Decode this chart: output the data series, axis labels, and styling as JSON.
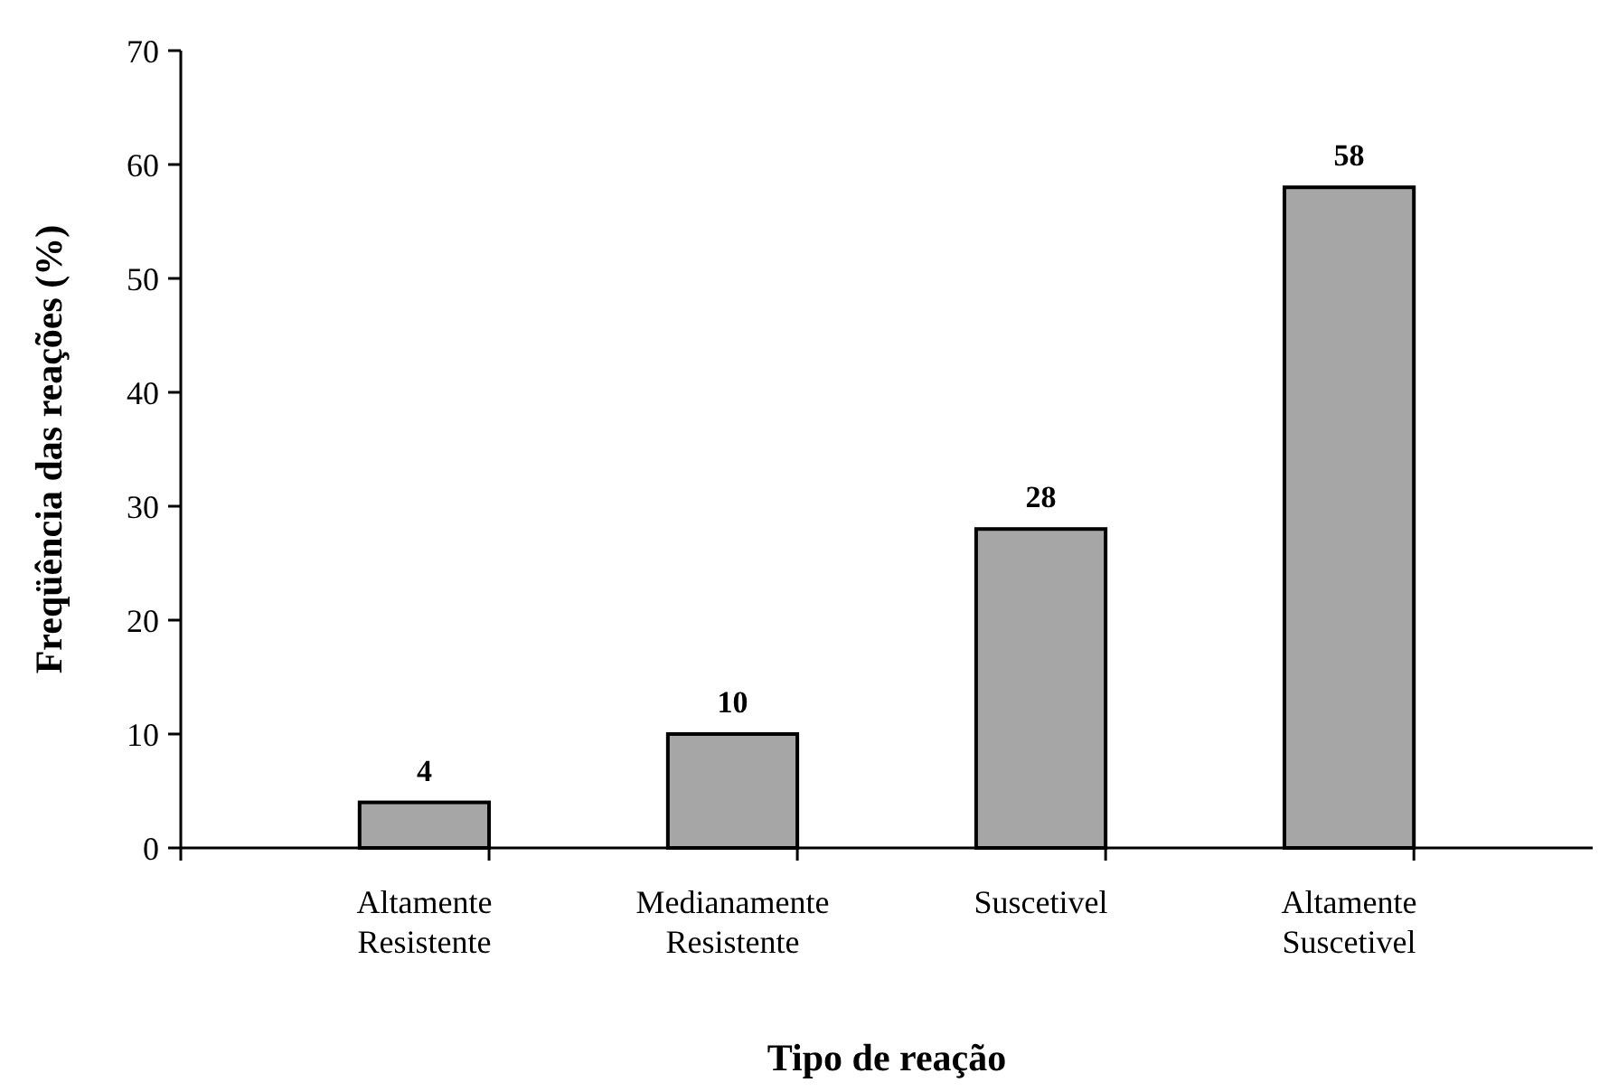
{
  "chart_data": {
    "type": "bar",
    "xlabel": "Tipo de reação",
    "ylabel": "Freqüência das reações (%)",
    "categories": [
      "Altamente Resistente",
      "Medianamente Resistente",
      "Suscetivel",
      "Altamente Suscetivel"
    ],
    "values": [
      4,
      10,
      28,
      58
    ],
    "color": "#a6a6a6",
    "ylim": [
      0,
      70
    ],
    "yticks": [
      0,
      10,
      20,
      30,
      40,
      50,
      60,
      70
    ],
    "grid": false,
    "data_labels": true
  }
}
